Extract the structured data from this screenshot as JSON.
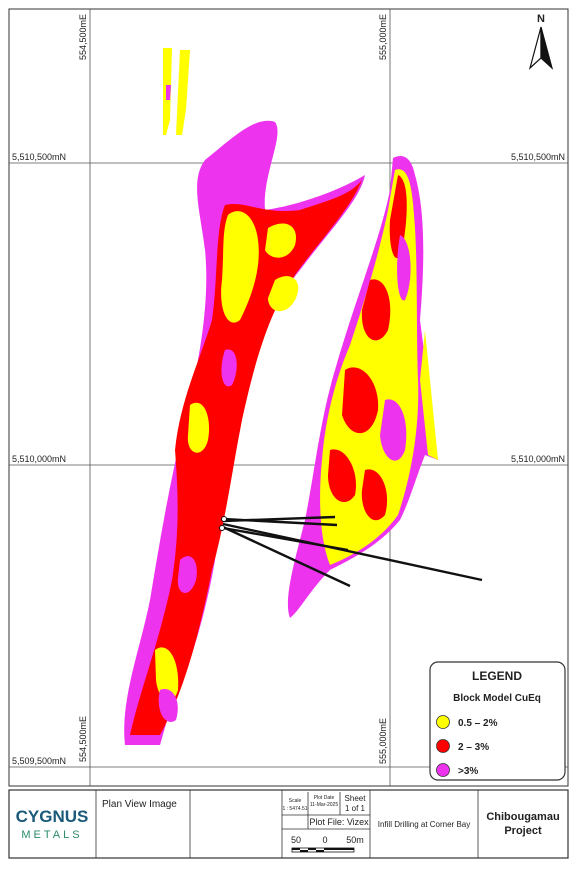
{
  "map": {
    "north_label": "N",
    "eastings": [
      "554,500mE",
      "555,000mE"
    ],
    "northings": [
      "5,510,500mN",
      "5,510,000mN",
      "5,509,500mN"
    ]
  },
  "legend": {
    "title": "LEGEND",
    "subtitle": "Block Model CuEq",
    "items": [
      {
        "label": "0.5 – 2%",
        "color": "#ffff00"
      },
      {
        "label": "2 – 3%",
        "color": "#ff0000"
      },
      {
        "label": ">3%",
        "color": "#ee33ee"
      }
    ]
  },
  "title_block": {
    "logo_top": "CYGNUS",
    "logo_bottom": "METALS",
    "view": "Plan View Image",
    "scale_heading": "Scale",
    "scale": "1 : 5474.51",
    "plot_date_heading": "Plot Date",
    "plot_date": "11-Mar-2025",
    "sheet_heading": "Sheet",
    "sheet": "1 of 1",
    "plot_file": "Plot File: Vizex",
    "scale_bar_labels": [
      "50",
      "0",
      "50m"
    ],
    "description": "Infill Drilling at Corner Bay",
    "project": "Chibougamau Project"
  }
}
